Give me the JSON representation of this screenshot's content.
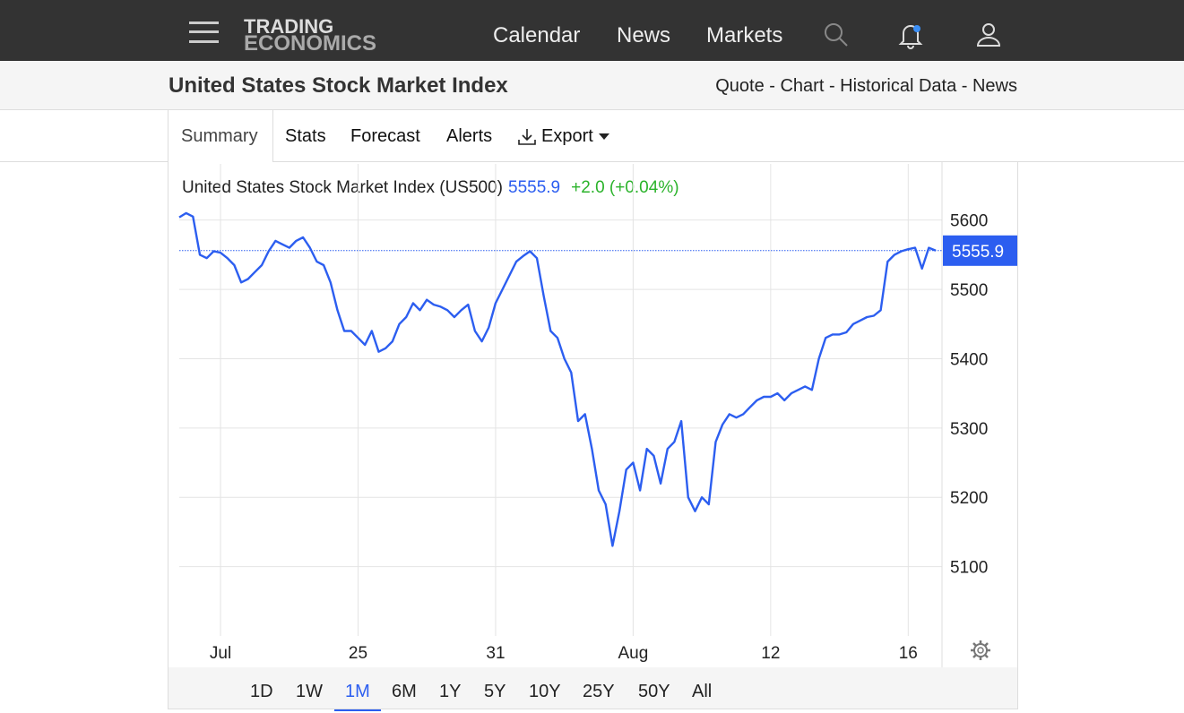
{
  "nav": {
    "logo_top": "TRADING",
    "logo_bottom": "ECONOMICS",
    "links": [
      "Calendar",
      "News",
      "Markets"
    ]
  },
  "header": {
    "title": "United States Stock Market Index",
    "links": "Quote - Chart - Historical Data - News"
  },
  "tabs": [
    "Summary",
    "Stats",
    "Forecast",
    "Alerts",
    "Export"
  ],
  "ranges": [
    "1D",
    "1W",
    "1M",
    "6M",
    "1Y",
    "5Y",
    "10Y",
    "25Y",
    "50Y",
    "All"
  ],
  "chart_data": {
    "type": "line",
    "title": "United States Stock Market Index (US500)",
    "price": 5555.9,
    "change": "+2.0 (+0.04%)",
    "color": "#2c5ef0",
    "categories": [
      null,
      null,
      null,
      null,
      null,
      null,
      "Jul",
      null,
      null,
      null,
      null,
      null,
      null,
      null,
      null,
      null,
      null,
      null,
      null,
      null,
      null,
      null,
      null,
      null,
      null,
      null,
      "25",
      null,
      null,
      null,
      null,
      null,
      null,
      null,
      null,
      null,
      null,
      null,
      null,
      null,
      null,
      null,
      null,
      null,
      null,
      null,
      "31",
      null,
      null,
      null,
      null,
      null,
      null,
      null,
      null,
      null,
      null,
      null,
      null,
      null,
      null,
      null,
      null,
      null,
      null,
      null,
      "Aug",
      null,
      null,
      null,
      null,
      null,
      null,
      null,
      null,
      null,
      null,
      null,
      null,
      null,
      null,
      null,
      null,
      null,
      null,
      null,
      "12",
      null,
      null,
      null,
      null,
      null,
      null,
      null,
      null,
      null,
      null,
      null,
      null,
      null,
      null,
      null,
      null,
      null,
      null,
      null,
      "16",
      null,
      null,
      null,
      null
    ],
    "values": [
      5604,
      5610,
      5605,
      5550,
      5545,
      5555,
      5553,
      5545,
      5535,
      5510,
      5515,
      5525,
      5535,
      5555,
      5570,
      5565,
      5560,
      5570,
      5575,
      5560,
      5540,
      5535,
      5510,
      5470,
      5440,
      5440,
      5430,
      5420,
      5440,
      5410,
      5415,
      5425,
      5450,
      5460,
      5480,
      5470,
      5485,
      5478,
      5475,
      5470,
      5460,
      5470,
      5478,
      5440,
      5425,
      5445,
      5480,
      5500,
      5520,
      5540,
      5548,
      5555,
      5545,
      5490,
      5440,
      5430,
      5400,
      5380,
      5310,
      5320,
      5270,
      5210,
      5190,
      5130,
      5180,
      5240,
      5250,
      5210,
      5270,
      5260,
      5220,
      5270,
      5280,
      5310,
      5200,
      5180,
      5200,
      5190,
      5280,
      5305,
      5320,
      5315,
      5320,
      5330,
      5340,
      5345,
      5345,
      5350,
      5340,
      5350,
      5355,
      5360,
      5355,
      5400,
      5430,
      5435,
      5435,
      5438,
      5450,
      5455,
      5460,
      5462,
      5470,
      5540,
      5550,
      5555,
      5558,
      5560,
      5530,
      5560,
      5556
    ],
    "ylim": [
      5000,
      5681
    ],
    "yticks": [
      5100,
      5200,
      5300,
      5400,
      5500,
      5600
    ],
    "grid": true
  }
}
